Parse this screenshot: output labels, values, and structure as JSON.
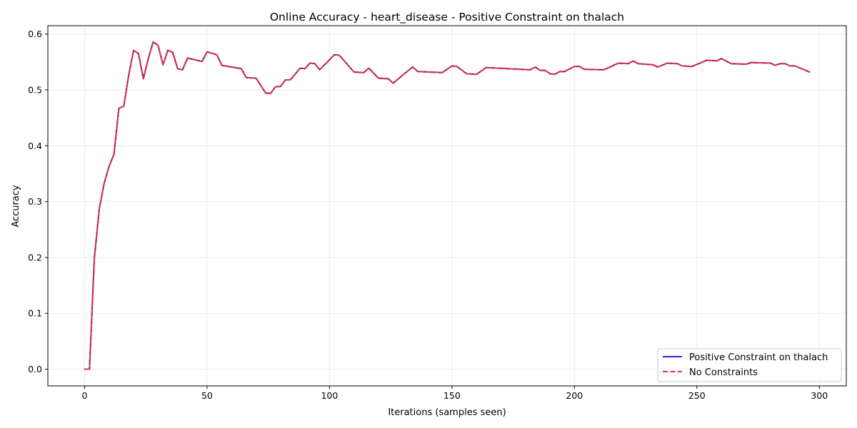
{
  "chart_data": {
    "type": "line",
    "title": "Online Accuracy - heart_disease - Positive Constraint on thalach",
    "xlabel": "Iterations (samples seen)",
    "ylabel": "Accuracy",
    "xlim": [
      -15,
      311
    ],
    "ylim": [
      -0.03,
      0.615
    ],
    "xticks": [
      0,
      50,
      100,
      150,
      200,
      250,
      300
    ],
    "yticks": [
      0.0,
      0.1,
      0.2,
      0.3,
      0.4,
      0.5,
      0.6
    ],
    "xtick_labels": [
      "0",
      "50",
      "100",
      "150",
      "200",
      "250",
      "300"
    ],
    "ytick_labels": [
      "0.0",
      "0.1",
      "0.2",
      "0.3",
      "0.4",
      "0.5",
      "0.6"
    ],
    "grid": true,
    "legend_position": "lower-right",
    "x": [
      0,
      2,
      4,
      6,
      8,
      10,
      12,
      14,
      16,
      18,
      20,
      22,
      24,
      26,
      28,
      30,
      32,
      34,
      36,
      38,
      40,
      42,
      48,
      50,
      54,
      56,
      64,
      66,
      70,
      74,
      76,
      78,
      80,
      82,
      84,
      88,
      90,
      92,
      94,
      96,
      100,
      102,
      104,
      110,
      114,
      116,
      120,
      124,
      126,
      130,
      134,
      136,
      146,
      150,
      152,
      156,
      160,
      164,
      182,
      184,
      186,
      188,
      190,
      192,
      194,
      196,
      200,
      202,
      204,
      212,
      218,
      222,
      224,
      226,
      232,
      234,
      238,
      242,
      244,
      248,
      254,
      258,
      260,
      264,
      270,
      272,
      280,
      282,
      284,
      286,
      288,
      290,
      296
    ],
    "series": [
      {
        "name": "Positive Constraint on thalach",
        "color": "#2020e8",
        "style": "solid",
        "values": [
          0.0,
          0.0,
          0.2,
          0.287,
          0.333,
          0.363,
          0.385,
          0.467,
          0.471,
          0.526,
          0.571,
          0.565,
          0.52,
          0.556,
          0.586,
          0.58,
          0.545,
          0.571,
          0.567,
          0.538,
          0.536,
          0.557,
          0.551,
          0.568,
          0.563,
          0.544,
          0.538,
          0.522,
          0.521,
          0.494,
          0.494,
          0.506,
          0.506,
          0.518,
          0.518,
          0.539,
          0.538,
          0.548,
          0.547,
          0.536,
          0.554,
          0.563,
          0.562,
          0.532,
          0.531,
          0.539,
          0.521,
          0.52,
          0.512,
          0.527,
          0.541,
          0.533,
          0.531,
          0.543,
          0.542,
          0.529,
          0.528,
          0.54,
          0.536,
          0.541,
          0.535,
          0.535,
          0.529,
          0.528,
          0.533,
          0.533,
          0.542,
          0.542,
          0.537,
          0.536,
          0.548,
          0.547,
          0.552,
          0.547,
          0.545,
          0.541,
          0.548,
          0.547,
          0.543,
          0.542,
          0.553,
          0.552,
          0.556,
          0.547,
          0.546,
          0.549,
          0.548,
          0.544,
          0.547,
          0.547,
          0.543,
          0.543,
          0.532
        ]
      },
      {
        "name": "No Constraints",
        "color": "#ef2f2f",
        "style": "dashed",
        "values": [
          0.0,
          0.0,
          0.2,
          0.287,
          0.333,
          0.363,
          0.385,
          0.467,
          0.471,
          0.526,
          0.571,
          0.565,
          0.52,
          0.556,
          0.586,
          0.58,
          0.545,
          0.571,
          0.567,
          0.538,
          0.536,
          0.557,
          0.551,
          0.568,
          0.563,
          0.544,
          0.538,
          0.522,
          0.521,
          0.494,
          0.494,
          0.506,
          0.506,
          0.518,
          0.518,
          0.539,
          0.538,
          0.548,
          0.547,
          0.536,
          0.554,
          0.563,
          0.562,
          0.532,
          0.531,
          0.539,
          0.521,
          0.52,
          0.512,
          0.527,
          0.541,
          0.533,
          0.531,
          0.543,
          0.542,
          0.529,
          0.528,
          0.54,
          0.536,
          0.541,
          0.535,
          0.535,
          0.529,
          0.528,
          0.533,
          0.533,
          0.542,
          0.542,
          0.537,
          0.536,
          0.548,
          0.547,
          0.552,
          0.547,
          0.545,
          0.541,
          0.548,
          0.547,
          0.543,
          0.542,
          0.553,
          0.552,
          0.556,
          0.547,
          0.546,
          0.549,
          0.548,
          0.544,
          0.547,
          0.547,
          0.543,
          0.543,
          0.532
        ]
      }
    ]
  }
}
